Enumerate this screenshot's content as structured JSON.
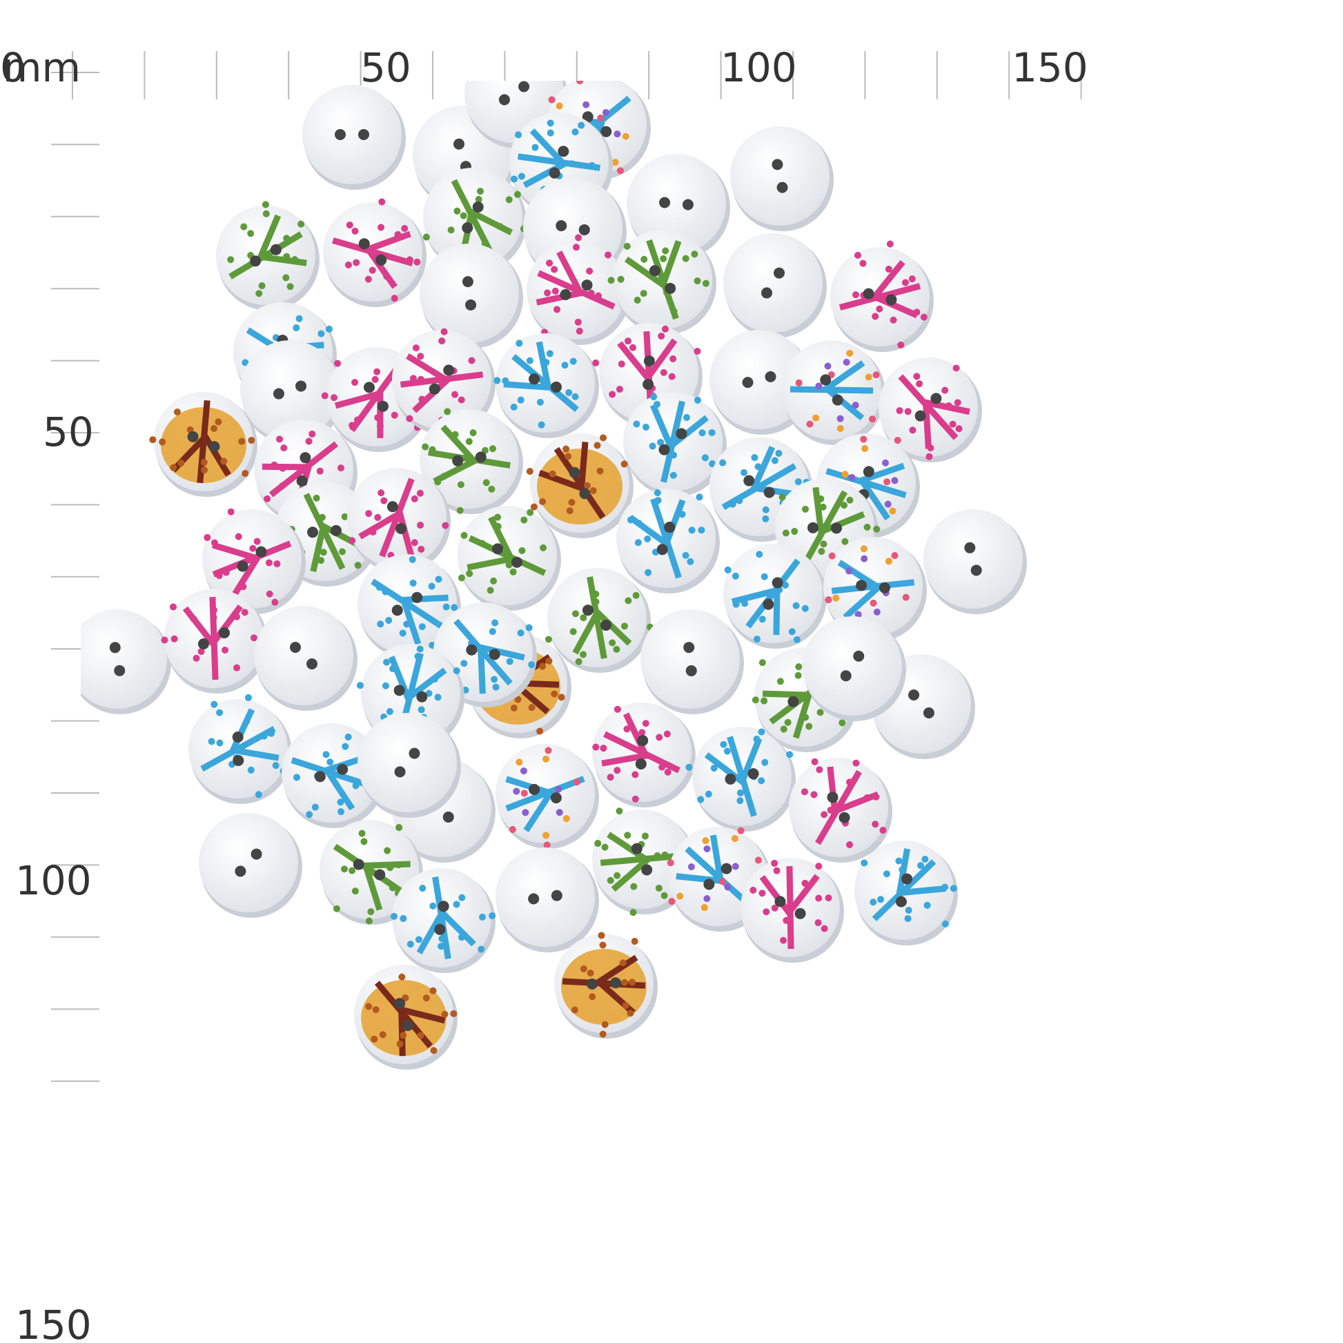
{
  "ruler": {
    "unit": "mm",
    "top_labels": [
      "0",
      "50",
      "100",
      "150"
    ],
    "left_labels": [
      "50",
      "100",
      "150"
    ]
  }
}
